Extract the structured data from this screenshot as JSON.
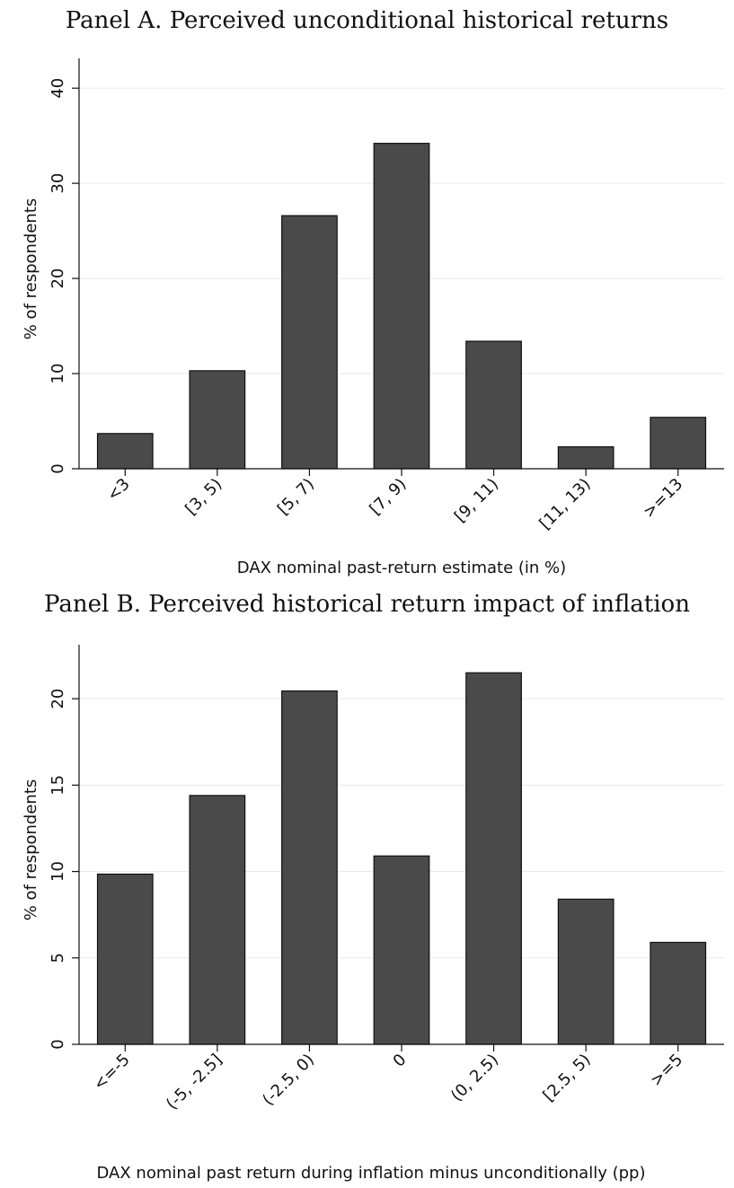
{
  "chart_data": [
    {
      "type": "bar",
      "title": "Panel A. Perceived unconditional historical returns",
      "xlabel": "DAX nominal past-return estimate (in %)",
      "ylabel": "% of respondents",
      "categories": [
        "<3",
        "[3, 5)",
        "[5, 7)",
        "[7, 9)",
        "[9, 11)",
        "[11, 13)",
        ">=13"
      ],
      "values": [
        3.7,
        10.3,
        26.6,
        34.2,
        13.4,
        2.3,
        5.4
      ],
      "ylim": [
        0,
        42
      ],
      "yticks": [
        0,
        10,
        20,
        30,
        40
      ],
      "grid": true,
      "bar_color": "#4a4a4a"
    },
    {
      "type": "bar",
      "title": "Panel B. Perceived historical return impact of inflation",
      "xlabel": "DAX nominal past return during inflation minus unconditionally (pp)",
      "ylabel": "% of respondents",
      "categories": [
        "<=-5",
        "(-5, -2.5]",
        "(-2.5, 0)",
        "0",
        "(0, 2.5)",
        "[2.5, 5)",
        ">=5"
      ],
      "values": [
        9.85,
        14.4,
        20.45,
        10.9,
        21.5,
        8.4,
        5.9
      ],
      "ylim": [
        0,
        22.5
      ],
      "yticks": [
        0,
        5,
        10,
        15,
        20
      ],
      "grid": true,
      "bar_color": "#4a4a4a"
    }
  ]
}
